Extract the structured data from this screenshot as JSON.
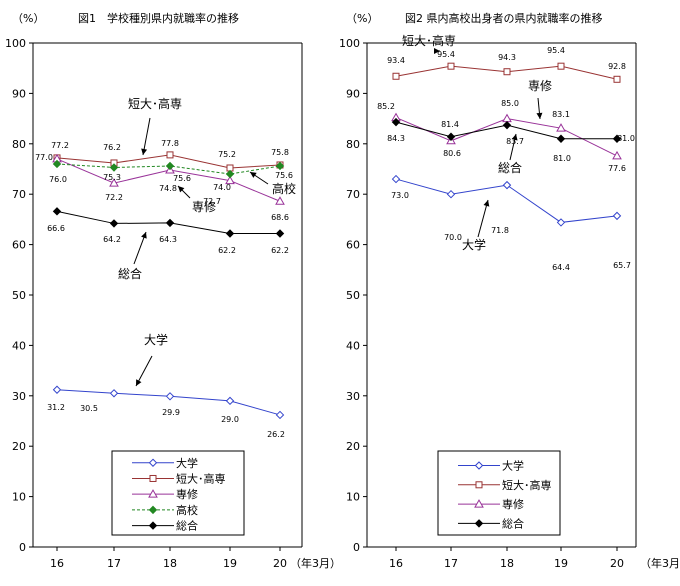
{
  "chart_data": [
    {
      "type": "line",
      "title": "図1　学校種別県内就職率の推移",
      "ylabel": "（%）",
      "xlabel_unit": "（年3月）",
      "categories": [
        "16",
        "17",
        "18",
        "19",
        "20"
      ],
      "ylim": [
        0,
        100
      ],
      "yticks": [
        "0",
        "10",
        "20",
        "30",
        "40",
        "50",
        "60",
        "70",
        "80",
        "90",
        "100"
      ],
      "grid": false,
      "legend_position": "bottom-center",
      "series": [
        {
          "name": "大学",
          "values": [
            31.2,
            30.5,
            29.9,
            29.0,
            26.2
          ],
          "labels": [
            "31.2",
            "30.5",
            "29.9",
            "29.0",
            "26.2"
          ],
          "color": "#3344cc",
          "marker": "diamond-open",
          "dashed": false
        },
        {
          "name": "短大･高専",
          "values": [
            77.2,
            76.2,
            77.8,
            75.2,
            75.8
          ],
          "labels": [
            "77.2",
            "76.2",
            "77.8",
            "75.2",
            "75.8"
          ],
          "color": "#993333",
          "marker": "square-open",
          "dashed": false
        },
        {
          "name": "専修",
          "values": [
            77.0,
            72.2,
            74.8,
            72.7,
            68.6
          ],
          "labels": [
            "77.0",
            "72.2",
            "74.8",
            "72.7",
            "68.6"
          ],
          "color": "#993399",
          "marker": "triangle-open",
          "dashed": false
        },
        {
          "name": "高校",
          "values": [
            76.0,
            75.3,
            75.6,
            74.0,
            75.6
          ],
          "labels": [
            "76.0",
            "75.3",
            "75.6",
            "74.0",
            "75.6"
          ],
          "color": "#228822",
          "marker": "diamond-filled",
          "dashed": true
        },
        {
          "name": "総合",
          "values": [
            66.6,
            64.2,
            64.3,
            62.2,
            62.2
          ],
          "labels": [
            "66.6",
            "64.2",
            "64.3",
            "62.2",
            "62.2"
          ],
          "color": "#000000",
          "marker": "diamond-filled",
          "dashed": false
        }
      ],
      "annotations": [
        "短大･高専",
        "専修",
        "高校",
        "総合",
        "大学"
      ]
    },
    {
      "type": "line",
      "title": "図2 県内高校出身者の県内就職率の推移",
      "ylabel": "（%）",
      "xlabel_unit": "（年3月）",
      "categories": [
        "16",
        "17",
        "18",
        "19",
        "20"
      ],
      "ylim": [
        0,
        100
      ],
      "yticks": [
        "0",
        "10",
        "20",
        "30",
        "40",
        "50",
        "60",
        "70",
        "80",
        "90",
        "100"
      ],
      "grid": false,
      "legend_position": "bottom-center",
      "series": [
        {
          "name": "大学",
          "values": [
            73.0,
            70.0,
            71.8,
            64.4,
            65.7
          ],
          "labels": [
            "73.0",
            "70.0",
            "71.8",
            "64.4",
            "65.7"
          ],
          "color": "#3344cc",
          "marker": "diamond-open",
          "dashed": false
        },
        {
          "name": "短大･高専",
          "values": [
            93.4,
            95.4,
            94.3,
            95.4,
            92.8
          ],
          "labels": [
            "93.4",
            "95.4",
            "94.3",
            "95.4",
            "92.8"
          ],
          "color": "#993333",
          "marker": "square-open",
          "dashed": false
        },
        {
          "name": "専修",
          "values": [
            85.2,
            80.6,
            85.0,
            83.1,
            77.6
          ],
          "labels": [
            "85.2",
            "80.6",
            "85.0",
            "83.1",
            "77.6"
          ],
          "color": "#993399",
          "marker": "triangle-open",
          "dashed": false
        },
        {
          "name": "総合",
          "values": [
            84.3,
            81.4,
            83.7,
            81.0,
            81.0
          ],
          "labels": [
            "84.3",
            "81.4",
            "83.7",
            "81.0",
            "81.0"
          ],
          "color": "#000000",
          "marker": "diamond-filled",
          "dashed": false
        }
      ],
      "annotations": [
        "短大･高専",
        "専修",
        "総合",
        "大学"
      ]
    }
  ]
}
